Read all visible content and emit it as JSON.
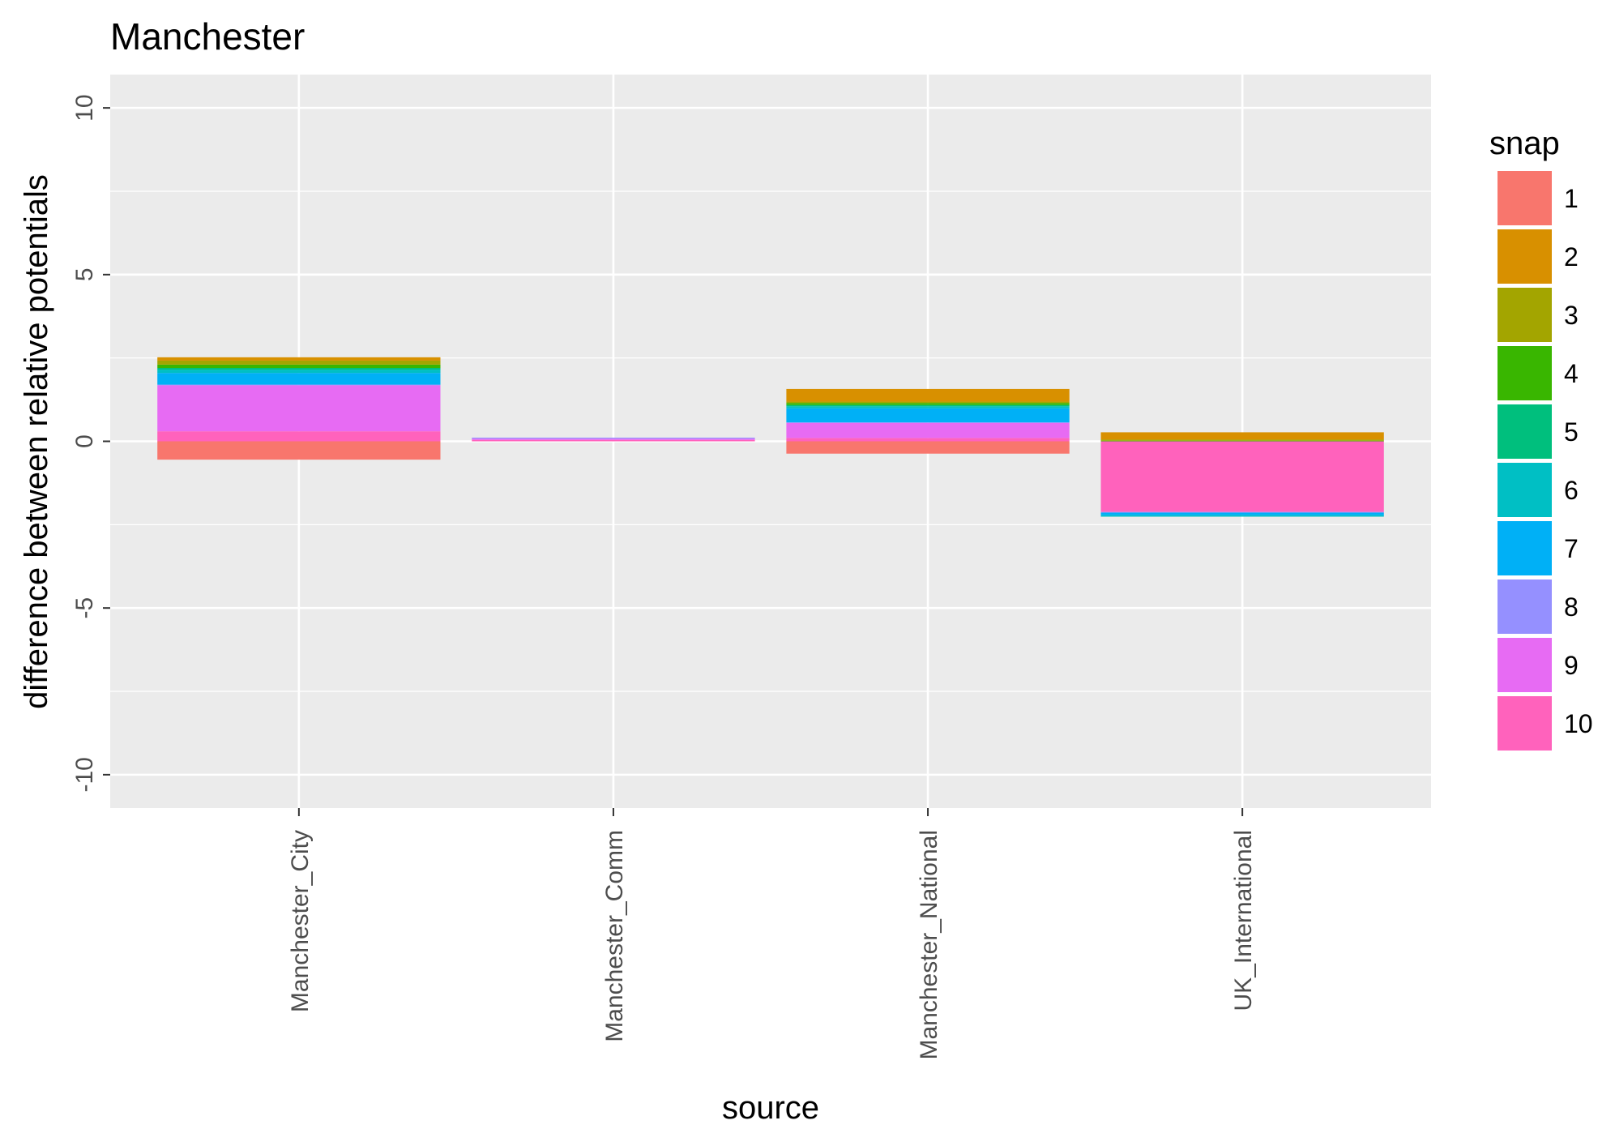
{
  "chart_data": {
    "type": "bar",
    "stacked": true,
    "title": "Manchester",
    "xlabel": "source",
    "ylabel": "difference between relative potentials",
    "categories": [
      "Manchester_City",
      "Manchester_Comm",
      "Manchester_National",
      "UK_International"
    ],
    "ylim": [
      -11,
      11
    ],
    "yticks": [
      -10,
      -5,
      0,
      5,
      10
    ],
    "grid": true,
    "legend": {
      "title": "snap",
      "position": "right",
      "entries": [
        "1",
        "2",
        "3",
        "4",
        "5",
        "6",
        "7",
        "8",
        "9",
        "10"
      ]
    },
    "series": [
      {
        "name": "1",
        "color": "#F8766D",
        "values": [
          -0.55,
          0.0,
          -0.37,
          0.0
        ]
      },
      {
        "name": "2",
        "color": "#D89000",
        "values": [
          0.1,
          0.0,
          0.38,
          0.22
        ]
      },
      {
        "name": "3",
        "color": "#A3A500",
        "values": [
          0.12,
          0.0,
          0.04,
          0.03
        ]
      },
      {
        "name": "4",
        "color": "#39B600",
        "values": [
          0.1,
          0.0,
          0.06,
          0.02
        ]
      },
      {
        "name": "5",
        "color": "#00BF7D",
        "values": [
          0.05,
          0.0,
          0.04,
          0.0
        ]
      },
      {
        "name": "6",
        "color": "#00BFC4",
        "values": [
          0.1,
          0.0,
          0.06,
          -0.04
        ]
      },
      {
        "name": "7",
        "color": "#00B0F6",
        "values": [
          0.35,
          0.0,
          0.42,
          -0.08
        ]
      },
      {
        "name": "8",
        "color": "#9590FF",
        "values": [
          0.02,
          0.03,
          0.02,
          -0.02
        ]
      },
      {
        "name": "9",
        "color": "#E76BF3",
        "values": [
          1.38,
          0.04,
          0.45,
          0.0
        ]
      },
      {
        "name": "10",
        "color": "#FF62BC",
        "values": [
          0.3,
          0.04,
          0.1,
          -2.12
        ]
      }
    ]
  }
}
